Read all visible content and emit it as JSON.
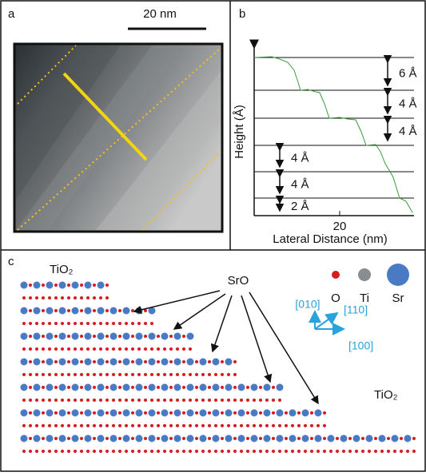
{
  "panel_a": {
    "label": "a",
    "scale_bar": "20 nm"
  },
  "panel_b": {
    "label": "b",
    "y_axis_label": "Height (Å)",
    "x_axis_label": "Lateral Distance (nm)",
    "x_tick": "20",
    "steps": [
      "6 Å",
      "4 Å",
      "4 Å",
      "4 Å",
      "4 Å",
      "2 Å"
    ]
  },
  "panel_c": {
    "label": "c",
    "terrace_top": "TiO₂",
    "terrace_bottom": "TiO₂",
    "step_label": "SrO",
    "legend": [
      "O",
      "Ti",
      "Sr"
    ],
    "directions": [
      "[010]",
      "[110]",
      "[100]"
    ]
  }
}
